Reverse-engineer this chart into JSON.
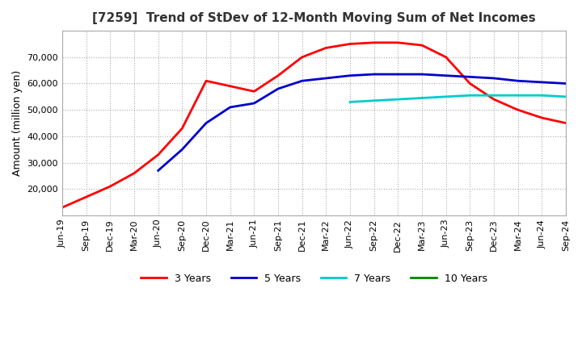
{
  "title": "[7259]  Trend of StDev of 12-Month Moving Sum of Net Incomes",
  "ylabel": "Amount (million yen)",
  "background_color": "#ffffff",
  "plot_background": "#ffffff",
  "grid_color": "#aaaaaa",
  "ylim": [
    10000,
    80000
  ],
  "yticks": [
    20000,
    30000,
    40000,
    50000,
    60000,
    70000
  ],
  "line_colors": {
    "3yr": "#ff0000",
    "5yr": "#0000cc",
    "7yr": "#00cccc",
    "10yr": "#008800"
  },
  "legend_labels": [
    "3 Years",
    "5 Years",
    "7 Years",
    "10 Years"
  ],
  "x_labels": [
    "Jun-19",
    "Sep-19",
    "Dec-19",
    "Mar-20",
    "Jun-20",
    "Sep-20",
    "Dec-20",
    "Mar-21",
    "Jun-21",
    "Sep-21",
    "Dec-21",
    "Mar-22",
    "Jun-22",
    "Sep-22",
    "Dec-22",
    "Mar-23",
    "Jun-23",
    "Sep-23",
    "Dec-23",
    "Mar-24",
    "Jun-24",
    "Sep-24"
  ],
  "series_3yr": [
    13000,
    17000,
    21000,
    26000,
    33000,
    43000,
    61000,
    59000,
    57000,
    63000,
    70000,
    73500,
    75000,
    75500,
    75500,
    74500,
    70000,
    60000,
    54000,
    50000,
    47000,
    45000
  ],
  "series_5yr": [
    null,
    null,
    null,
    null,
    27000,
    35000,
    45000,
    51000,
    52500,
    58000,
    61000,
    62000,
    63000,
    63500,
    63500,
    63500,
    63000,
    62500,
    62000,
    61000,
    60500,
    60000
  ],
  "series_7yr": [
    null,
    null,
    null,
    null,
    null,
    null,
    null,
    null,
    null,
    null,
    null,
    null,
    53000,
    53500,
    54000,
    54500,
    55000,
    55500,
    55500,
    55500,
    55500,
    55000
  ],
  "series_10yr": [
    null,
    null,
    null,
    null,
    null,
    null,
    null,
    null,
    null,
    null,
    null,
    null,
    null,
    null,
    null,
    null,
    null,
    null,
    null,
    null,
    null,
    null
  ]
}
